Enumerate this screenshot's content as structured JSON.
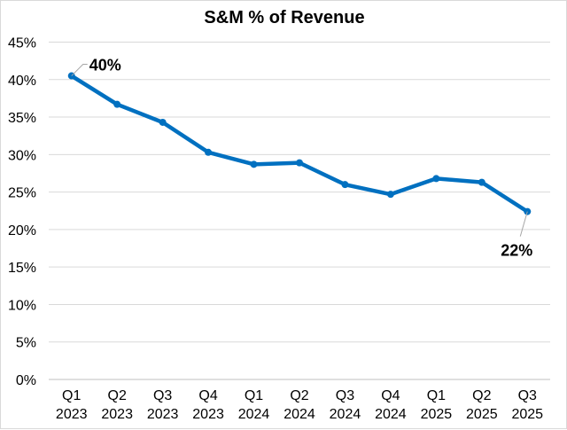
{
  "chart_data": {
    "type": "line",
    "title": "S&M % of Revenue",
    "xlabel": "",
    "ylabel": "",
    "categories": [
      [
        "Q1",
        "2023"
      ],
      [
        "Q2",
        "2023"
      ],
      [
        "Q3",
        "2023"
      ],
      [
        "Q4",
        "2023"
      ],
      [
        "Q1",
        "2024"
      ],
      [
        "Q2",
        "2024"
      ],
      [
        "Q3",
        "2024"
      ],
      [
        "Q4",
        "2024"
      ],
      [
        "Q1",
        "2025"
      ],
      [
        "Q2",
        "2025"
      ],
      [
        "Q3",
        "2025"
      ]
    ],
    "series": [
      {
        "name": "S&M % of Revenue",
        "color": "#0070C0",
        "values": [
          40.5,
          36.7,
          34.3,
          30.3,
          28.7,
          28.9,
          26.0,
          24.7,
          26.8,
          26.3,
          22.4
        ]
      }
    ],
    "ylim": [
      0,
      45
    ],
    "yticks": [
      0,
      5,
      10,
      15,
      20,
      25,
      30,
      35,
      40,
      45
    ],
    "ytick_suffix": "%",
    "grid": true,
    "annotations": [
      {
        "index": 0,
        "text": "40%"
      },
      {
        "index": 10,
        "text": "22%"
      }
    ]
  }
}
